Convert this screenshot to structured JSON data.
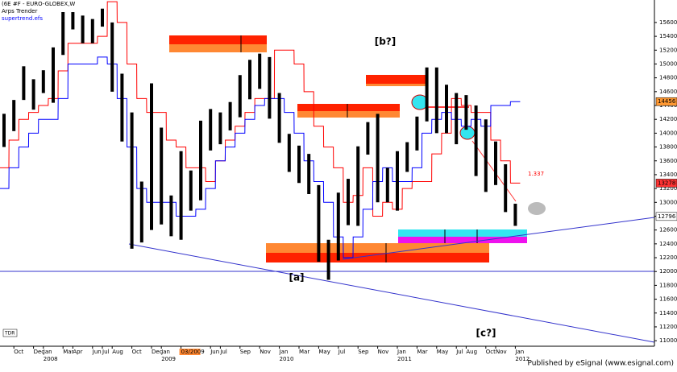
{
  "chart_data": {
    "type": "hl-bars",
    "title": "(6E #F - EURO-GLOBEX,W",
    "x": [
      "2007-09",
      "2007-10",
      "2007-11",
      "2007-12",
      "2008-01",
      "2008-02",
      "2008-03",
      "2008-04",
      "2008-05",
      "2008-06",
      "2008-07",
      "2008-08",
      "2008-09",
      "2008-10",
      "2008-11",
      "2008-12",
      "2009-01",
      "2009-02",
      "2009-03",
      "2009-04",
      "2009-05",
      "2009-06",
      "2009-07",
      "2009-08",
      "2009-09",
      "2009-10",
      "2009-11",
      "2009-12",
      "2010-01",
      "2010-02",
      "2010-03",
      "2010-04",
      "2010-05",
      "2010-06",
      "2010-07",
      "2010-08",
      "2010-09",
      "2010-10",
      "2010-11",
      "2010-12",
      "2011-01",
      "2011-02",
      "2011-03",
      "2011-04",
      "2011-05",
      "2011-06",
      "2011-07",
      "2011-08",
      "2011-09",
      "2011-10",
      "2011-11",
      "2011-12",
      "2012-01"
    ],
    "high": [
      14280,
      14480,
      14967,
      14780,
      14910,
      15240,
      15750,
      15750,
      15700,
      15650,
      15800,
      15600,
      14860,
      14300,
      13300,
      14720,
      14080,
      13100,
      13740,
      13460,
      14180,
      14350,
      14300,
      14450,
      14840,
      15060,
      15150,
      15100,
      14580,
      13990,
      13820,
      13700,
      13250,
      12460,
      13140,
      13340,
      13810,
      14160,
      14280,
      13500,
      13740,
      13870,
      14240,
      14950,
      14950,
      14700,
      14580,
      14550,
      14400,
      14200,
      13880,
      13550,
      12980
    ],
    "low": [
      13800,
      14030,
      14480,
      14340,
      14580,
      14440,
      15130,
      15500,
      15300,
      15300,
      15540,
      14600,
      13880,
      12330,
      12420,
      12600,
      12680,
      12510,
      12460,
      12880,
      13030,
      13750,
      13840,
      14040,
      14230,
      14490,
      14640,
      14210,
      13860,
      13440,
      13280,
      13120,
      12140,
      11880,
      12160,
      12670,
      12660,
      13690,
      13000,
      13000,
      12880,
      13440,
      13750,
      14170,
      14000,
      14000,
      13840,
      14050,
      13380,
      13150,
      13250,
      12860,
      12660
    ],
    "bar_color": "#000000",
    "series": [
      {
        "name": "Arps Trender",
        "color": "#ff0000",
        "values": [
          13500,
          13900,
          14200,
          14300,
          14400,
          14500,
          14900,
          15300,
          15300,
          15300,
          15400,
          15900,
          15600,
          15000,
          14500,
          14300,
          14300,
          13900,
          13800,
          13500,
          13500,
          13300,
          13600,
          13900,
          14100,
          14300,
          14500,
          14500,
          15200,
          15200,
          15000,
          14600,
          14100,
          13800,
          13500,
          13000,
          13100,
          13500,
          12800,
          13000,
          12900,
          13200,
          13300,
          13300,
          13700,
          14000,
          14500,
          14400,
          14300,
          14300,
          13900,
          13600,
          13278
        ]
      },
      {
        "name": "supertrend.efs",
        "color": "#0000ff",
        "values": [
          13200,
          13500,
          13800,
          14000,
          14200,
          14200,
          14500,
          15000,
          15000,
          15000,
          15100,
          15000,
          14500,
          13800,
          13200,
          13000,
          13000,
          13000,
          12800,
          12800,
          12900,
          13200,
          13600,
          13800,
          14000,
          14200,
          14400,
          14500,
          14500,
          14300,
          14000,
          13600,
          13300,
          13000,
          12500,
          12200,
          12500,
          12900,
          13300,
          13500,
          13300,
          13300,
          13500,
          14000,
          14200,
          14300,
          14200,
          14100,
          14200,
          14100,
          14400,
          14400,
          14456
        ]
      }
    ],
    "ylim": [
      10920,
      15925
    ],
    "yticks": [
      11000,
      11200,
      11400,
      11600,
      11800,
      12000,
      12200,
      12400,
      12600,
      12800,
      13000,
      13200,
      13400,
      13600,
      13800,
      14000,
      14200,
      14400,
      14600,
      14800,
      15000,
      15200,
      15400,
      15600
    ],
    "xticks": [
      {
        "value": "2007-10",
        "label": "Oct"
      },
      {
        "value": "2007-12",
        "label": "Dec"
      },
      {
        "value": "2008-01",
        "label": "Jan"
      },
      {
        "value": "2008-03",
        "label": "Mar"
      },
      {
        "value": "2008-04",
        "label": "Apr"
      },
      {
        "value": "2008-06",
        "label": "Jun"
      },
      {
        "value": "2008-07",
        "label": "Jul"
      },
      {
        "value": "2008-08",
        "label": "Aug"
      },
      {
        "value": "2008-10",
        "label": "Oct"
      },
      {
        "value": "2008-12",
        "label": "Dec"
      },
      {
        "value": "2009-01",
        "label": "Jan"
      },
      {
        "value": "2009-03",
        "label": "03/2009"
      },
      {
        "value": "2009-06",
        "label": "Jun"
      },
      {
        "value": "2009-07",
        "label": "Jul"
      },
      {
        "value": "2009-09",
        "label": "Sep"
      },
      {
        "value": "2009-11",
        "label": "Nov"
      },
      {
        "value": "2010-01",
        "label": "Jan"
      },
      {
        "value": "2010-03",
        "label": "Mar"
      },
      {
        "value": "2010-05",
        "label": "May"
      },
      {
        "value": "2010-07",
        "label": "Jul"
      },
      {
        "value": "2010-09",
        "label": "Sep"
      },
      {
        "value": "2010-11",
        "label": "Nov"
      },
      {
        "value": "2011-01",
        "label": "Jan"
      },
      {
        "value": "2011-03",
        "label": "Mar"
      },
      {
        "value": "2011-05",
        "label": "May"
      },
      {
        "value": "2011-07",
        "label": "Jul"
      },
      {
        "value": "2011-08",
        "label": "Aug"
      },
      {
        "value": "2011-10",
        "label": "Oct"
      },
      {
        "value": "2011-11",
        "label": "Nov"
      },
      {
        "value": "2012-01",
        "label": "Jan"
      }
    ],
    "highlighted_xtick": "03/2009",
    "year_labels": [
      {
        "value": "2008-01",
        "label": "2008"
      },
      {
        "value": "2009-01",
        "label": "2009"
      },
      {
        "value": "2010-01",
        "label": "2010"
      },
      {
        "value": "2011-01",
        "label": "2011"
      },
      {
        "value": "2012-01",
        "label": "2012"
      }
    ],
    "price_tags": [
      {
        "value": 14456,
        "color": "#ff9933"
      },
      {
        "value": 13278,
        "color": "#ff3333"
      },
      {
        "value": 12796,
        "color": "#ffffff"
      }
    ],
    "annotations": {
      "b": "[b?]",
      "a": "[a]",
      "c": "[c?]",
      "target": "1.337",
      "tdr": "TDR"
    },
    "footer": "Published by eSignal (www.esignal.com)"
  }
}
